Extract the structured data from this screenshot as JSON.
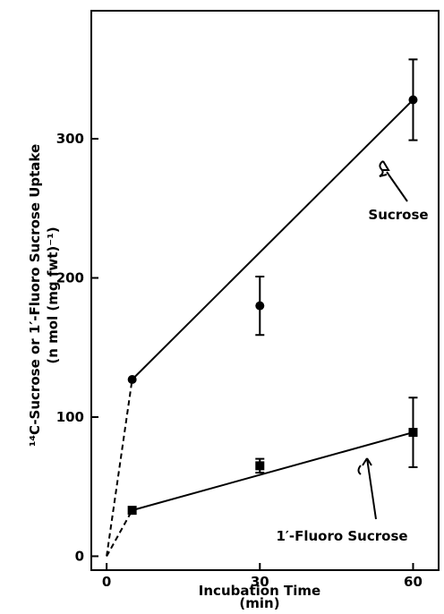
{
  "chart_data": {
    "type": "line",
    "x_label": "Incubation Time",
    "x_unit": "(min)",
    "y_label": "¹⁴C-Sucrose or 1′-Fluoro Sucrose Uptake",
    "y_unit": "(n mol (mg fwt)⁻¹)",
    "x": [
      5,
      30,
      60
    ],
    "series": [
      {
        "name": "Sucrose",
        "color": "#000000",
        "marker": "circle",
        "values": [
          127,
          180,
          328
        ],
        "errors": [
          null,
          21,
          29
        ]
      },
      {
        "name": "1′-Fluoro Sucrose",
        "color": "#000000",
        "marker": "square",
        "values": [
          33,
          65,
          89
        ],
        "errors": [
          null,
          5,
          25
        ]
      }
    ],
    "xlim": [
      -3,
      65
    ],
    "ylim": [
      -10,
      392
    ],
    "xticks": [
      0,
      30,
      60
    ],
    "yticks": [
      0,
      100,
      200,
      300
    ]
  }
}
